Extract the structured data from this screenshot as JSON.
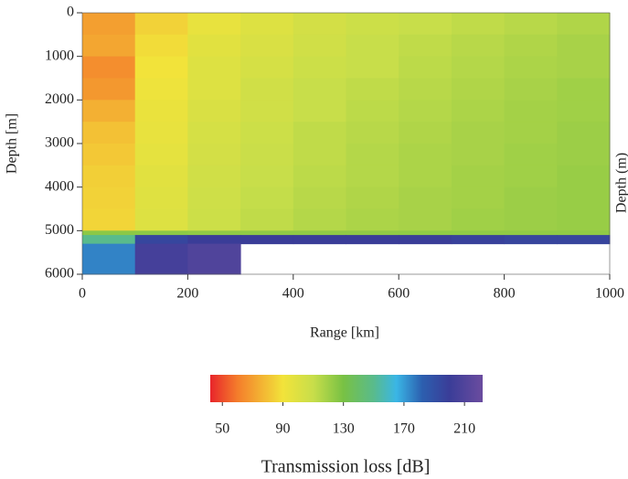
{
  "chart_data": {
    "type": "heatmap",
    "x_label": "Range [km]",
    "y_label": "Depth [m]",
    "side_label": "Depth (m)",
    "colorbar_label": "Transmission loss [dB]",
    "xlim": [
      0,
      1000
    ],
    "xticks": [
      0,
      200,
      400,
      600,
      800,
      1000
    ],
    "ylim": [
      6000,
      0
    ],
    "yticks": [
      0,
      1000,
      2000,
      3000,
      4000,
      5000,
      6000
    ],
    "x_edges": [
      0,
      100,
      200,
      300,
      400,
      500,
      600,
      700,
      800,
      900,
      1000
    ],
    "y_edges": [
      0,
      500,
      1000,
      1500,
      2000,
      2500,
      3000,
      3500,
      4000,
      4500,
      5000,
      5100,
      5300,
      6000
    ],
    "z": [
      [
        70,
        85,
        95,
        100,
        105,
        108,
        110,
        112,
        114,
        116
      ],
      [
        72,
        88,
        98,
        102,
        106,
        110,
        112,
        114,
        116,
        118
      ],
      [
        65,
        90,
        100,
        104,
        108,
        110,
        113,
        115,
        117,
        118
      ],
      [
        68,
        92,
        100,
        106,
        110,
        112,
        114,
        116,
        118,
        120
      ],
      [
        75,
        94,
        102,
        106,
        110,
        113,
        115,
        117,
        119,
        120
      ],
      [
        80,
        95,
        104,
        108,
        112,
        114,
        116,
        118,
        119,
        121
      ],
      [
        82,
        96,
        105,
        109,
        112,
        115,
        117,
        118,
        120,
        121
      ],
      [
        84,
        98,
        106,
        110,
        113,
        115,
        117,
        119,
        120,
        122
      ],
      [
        85,
        99,
        107,
        111,
        114,
        116,
        118,
        119,
        121,
        122
      ],
      [
        86,
        100,
        108,
        112,
        115,
        117,
        118,
        120,
        121,
        122
      ],
      [
        125,
        125,
        124,
        124,
        124,
        124,
        124,
        124,
        124,
        124
      ],
      [
        150,
        195,
        200,
        200,
        200,
        200,
        200,
        198,
        196,
        196
      ],
      [
        175,
        205,
        210,
        null,
        null,
        null,
        null,
        null,
        null,
        null
      ]
    ],
    "clim": [
      42,
      222
    ],
    "cticks": [
      50,
      90,
      130,
      170,
      210
    ],
    "colormap": [
      {
        "value": 42,
        "color": "#e8252b"
      },
      {
        "value": 60,
        "color": "#f47d2b"
      },
      {
        "value": 90,
        "color": "#f2e33a"
      },
      {
        "value": 110,
        "color": "#c8de4a"
      },
      {
        "value": 130,
        "color": "#78c144"
      },
      {
        "value": 150,
        "color": "#59bb8c"
      },
      {
        "value": 165,
        "color": "#3ab6e6"
      },
      {
        "value": 182,
        "color": "#2c5faf"
      },
      {
        "value": 200,
        "color": "#3a3d98"
      },
      {
        "value": 222,
        "color": "#6b4c9f"
      }
    ]
  }
}
